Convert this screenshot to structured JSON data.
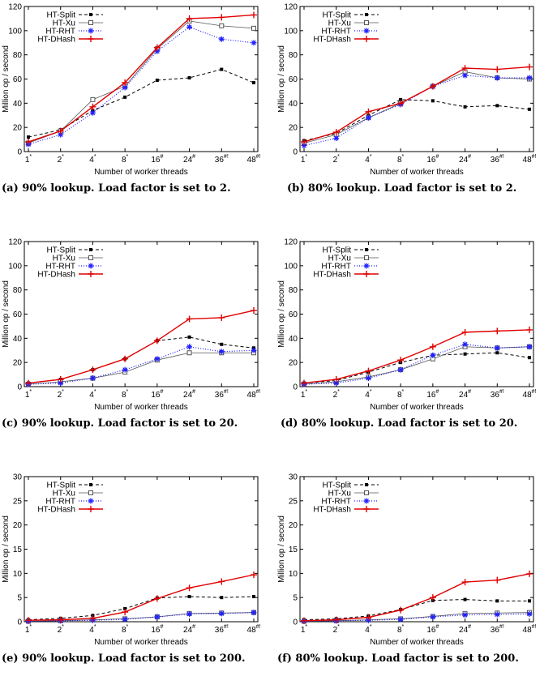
{
  "colors": {
    "HT-Split": "#000000",
    "HT-Xu": "#555555",
    "HT-RHT": "#1f1fff",
    "HT-DHash": "#e00000"
  },
  "chart_data": [
    {
      "type": "line",
      "caption": "(a) 90% lookup. Load factor is set to 2.",
      "xlabel": "Number of worker threads",
      "ylabel": "Million op / second",
      "x_ticks": [
        {
          "base": "1",
          "sup": "*"
        },
        {
          "base": "2",
          "sup": "*"
        },
        {
          "base": "4",
          "sup": "*"
        },
        {
          "base": "8",
          "sup": "*"
        },
        {
          "base": "16",
          "sup": "#"
        },
        {
          "base": "24",
          "sup": "#"
        },
        {
          "base": "36",
          "sup": "#!"
        },
        {
          "base": "48",
          "sup": "#!"
        }
      ],
      "ylim": [
        0,
        120
      ],
      "yticks": [
        0,
        20,
        40,
        60,
        80,
        100,
        120
      ],
      "legend": "top-left",
      "series": [
        {
          "name": "HT-Split",
          "values": [
            12,
            18,
            34,
            45,
            59,
            61,
            68,
            57
          ]
        },
        {
          "name": "HT-Xu",
          "values": [
            7,
            17,
            43,
            54,
            85,
            108,
            104,
            102
          ]
        },
        {
          "name": "HT-RHT",
          "values": [
            6,
            14,
            32,
            53,
            83,
            103,
            93,
            90
          ]
        },
        {
          "name": "HT-DHash",
          "values": [
            8,
            17,
            37,
            57,
            86,
            110,
            111,
            113
          ]
        }
      ]
    },
    {
      "type": "line",
      "caption": "(b) 80% lookup. Load factor is set to 2.",
      "xlabel": "Number of worker threads",
      "ylabel": "Million op / second",
      "x_ticks": [
        {
          "base": "1",
          "sup": "*"
        },
        {
          "base": "2",
          "sup": "*"
        },
        {
          "base": "4",
          "sup": "*"
        },
        {
          "base": "8",
          "sup": "*"
        },
        {
          "base": "16",
          "sup": "#"
        },
        {
          "base": "24",
          "sup": "#"
        },
        {
          "base": "36",
          "sup": "#!"
        },
        {
          "base": "48",
          "sup": "#!"
        }
      ],
      "ylim": [
        0,
        120
      ],
      "yticks": [
        0,
        20,
        40,
        60,
        80,
        100,
        120
      ],
      "legend": "top-left",
      "series": [
        {
          "name": "HT-Split",
          "values": [
            9,
            15,
            30,
            43,
            42,
            37,
            38,
            35
          ]
        },
        {
          "name": "HT-Xu",
          "values": [
            7,
            14,
            28,
            40,
            54,
            66,
            61,
            60
          ]
        },
        {
          "name": "HT-RHT",
          "values": [
            5,
            11,
            28,
            39,
            54,
            63,
            61,
            61
          ]
        },
        {
          "name": "HT-DHash",
          "values": [
            8,
            16,
            33,
            40,
            54,
            69,
            68,
            70
          ]
        }
      ]
    },
    {
      "type": "line",
      "caption": "(c) 90% lookup. Load factor is set to 20.",
      "xlabel": "Number of worker threads",
      "ylabel": "Million op / second",
      "x_ticks": [
        {
          "base": "1",
          "sup": "*"
        },
        {
          "base": "2",
          "sup": "*"
        },
        {
          "base": "4",
          "sup": "*"
        },
        {
          "base": "8",
          "sup": "*"
        },
        {
          "base": "16",
          "sup": "#"
        },
        {
          "base": "24",
          "sup": "#"
        },
        {
          "base": "36",
          "sup": "#!"
        },
        {
          "base": "48",
          "sup": "#!"
        }
      ],
      "ylim": [
        0,
        120
      ],
      "yticks": [
        0,
        20,
        40,
        60,
        80,
        100,
        120
      ],
      "legend": "top-left",
      "series": [
        {
          "name": "HT-Split",
          "values": [
            3,
            6,
            14,
            23,
            38,
            41,
            35,
            32
          ]
        },
        {
          "name": "HT-Xu",
          "values": [
            2,
            4,
            7,
            12,
            22,
            28,
            28,
            28
          ]
        },
        {
          "name": "HT-RHT",
          "values": [
            2,
            3,
            7,
            14,
            23,
            33,
            29,
            30
          ]
        },
        {
          "name": "HT-DHash",
          "values": [
            3,
            6,
            14,
            23,
            38,
            56,
            57,
            63
          ]
        }
      ]
    },
    {
      "type": "line",
      "caption": "(d) 80% lookup. Load factor is set to 20.",
      "xlabel": "Number of worker threads",
      "ylabel": "Million op / second",
      "x_ticks": [
        {
          "base": "1",
          "sup": "*"
        },
        {
          "base": "2",
          "sup": "*"
        },
        {
          "base": "4",
          "sup": "*"
        },
        {
          "base": "8",
          "sup": "*"
        },
        {
          "base": "16",
          "sup": "#"
        },
        {
          "base": "24",
          "sup": "#"
        },
        {
          "base": "36",
          "sup": "#!"
        },
        {
          "base": "48",
          "sup": "#!"
        }
      ],
      "ylim": [
        0,
        120
      ],
      "yticks": [
        0,
        20,
        40,
        60,
        80,
        100,
        120
      ],
      "legend": "top-left",
      "series": [
        {
          "name": "HT-Split",
          "values": [
            3,
            5,
            12,
            20,
            26,
            27,
            28,
            24
          ]
        },
        {
          "name": "HT-Xu",
          "values": [
            2,
            4,
            8,
            14,
            23,
            33,
            32,
            33
          ]
        },
        {
          "name": "HT-RHT",
          "values": [
            2,
            3,
            7,
            14,
            26,
            35,
            32,
            33
          ]
        },
        {
          "name": "HT-DHash",
          "values": [
            3,
            6,
            13,
            22,
            33,
            45,
            46,
            47
          ]
        }
      ]
    },
    {
      "type": "line",
      "caption": "(e) 90% lookup. Load factor is set to 200.",
      "xlabel": "Number of worker threads",
      "ylabel": "Million op / second",
      "x_ticks": [
        {
          "base": "1",
          "sup": "*"
        },
        {
          "base": "2",
          "sup": "*"
        },
        {
          "base": "4",
          "sup": "*"
        },
        {
          "base": "8",
          "sup": "*"
        },
        {
          "base": "16",
          "sup": "#"
        },
        {
          "base": "24",
          "sup": "#"
        },
        {
          "base": "36",
          "sup": "#!"
        },
        {
          "base": "48",
          "sup": "#!"
        }
      ],
      "ylim": [
        0,
        30
      ],
      "yticks": [
        0,
        5,
        10,
        15,
        20,
        25,
        30
      ],
      "legend": "top-left",
      "series": [
        {
          "name": "HT-Split",
          "values": [
            0.4,
            0.7,
            1.3,
            2.7,
            4.9,
            5.2,
            5.0,
            5.2
          ]
        },
        {
          "name": "HT-Xu",
          "values": [
            0.1,
            0.2,
            0.4,
            0.6,
            1.0,
            1.7,
            1.8,
            1.9
          ]
        },
        {
          "name": "HT-RHT",
          "values": [
            0.1,
            0.2,
            0.3,
            0.5,
            1.0,
            1.6,
            1.7,
            1.9
          ]
        },
        {
          "name": "HT-DHash",
          "values": [
            0.3,
            0.4,
            0.7,
            2.0,
            4.8,
            7.0,
            8.3,
            9.7
          ]
        }
      ]
    },
    {
      "type": "line",
      "caption": "(f) 80% lookup. Load factor is set to 200.",
      "xlabel": "Number of worker threads",
      "ylabel": "Million op / second",
      "x_ticks": [
        {
          "base": "1",
          "sup": "*"
        },
        {
          "base": "2",
          "sup": "*"
        },
        {
          "base": "4",
          "sup": "*"
        },
        {
          "base": "8",
          "sup": "*"
        },
        {
          "base": "16",
          "sup": "#"
        },
        {
          "base": "24",
          "sup": "#"
        },
        {
          "base": "36",
          "sup": "#!"
        },
        {
          "base": "48",
          "sup": "#!"
        }
      ],
      "ylim": [
        0,
        30
      ],
      "yticks": [
        0,
        5,
        10,
        15,
        20,
        25,
        30
      ],
      "legend": "top-left",
      "series": [
        {
          "name": "HT-Split",
          "values": [
            0.4,
            0.6,
            1.2,
            2.5,
            4.4,
            4.6,
            4.3,
            4.3
          ]
        },
        {
          "name": "HT-Xu",
          "values": [
            0.1,
            0.2,
            0.4,
            0.6,
            1.1,
            1.7,
            1.8,
            1.9
          ]
        },
        {
          "name": "HT-RHT",
          "values": [
            0.1,
            0.2,
            0.3,
            0.5,
            1.0,
            1.4,
            1.5,
            1.6
          ]
        },
        {
          "name": "HT-DHash",
          "values": [
            0.2,
            0.4,
            0.9,
            2.4,
            5.0,
            8.2,
            8.6,
            9.9
          ]
        }
      ]
    }
  ]
}
